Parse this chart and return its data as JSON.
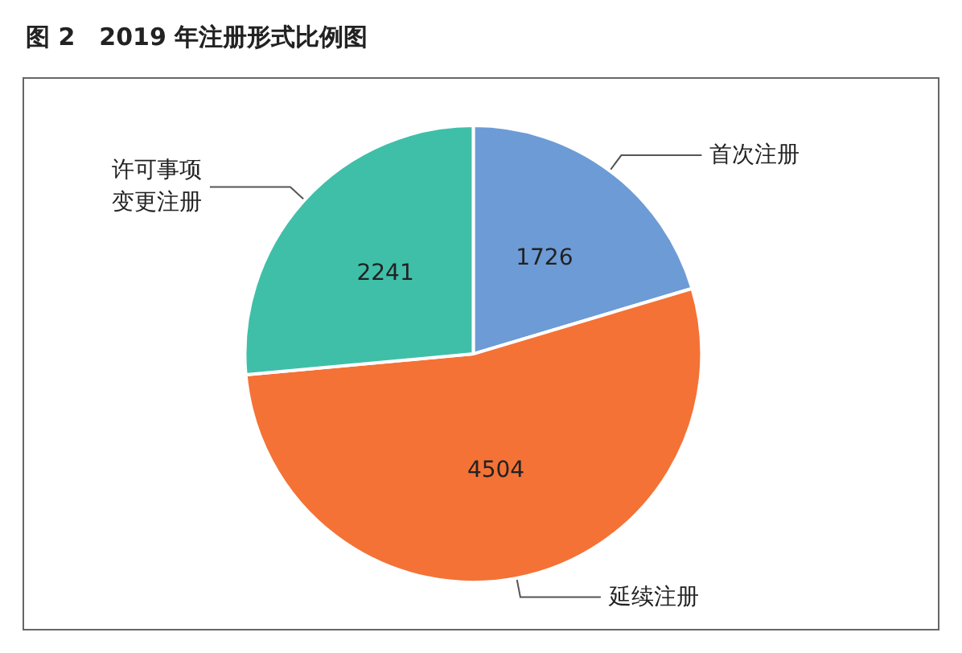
{
  "chart_data": {
    "type": "pie",
    "title": "图 2　2019 年注册形式比例图",
    "categories": [
      "首次注册",
      "延续注册",
      "许可事项变更注册"
    ],
    "values": [
      1726,
      4504,
      2241
    ],
    "colors": [
      "#6d9bd6",
      "#f47236",
      "#3fbfa8"
    ],
    "data_labels": true,
    "legend": false
  }
}
